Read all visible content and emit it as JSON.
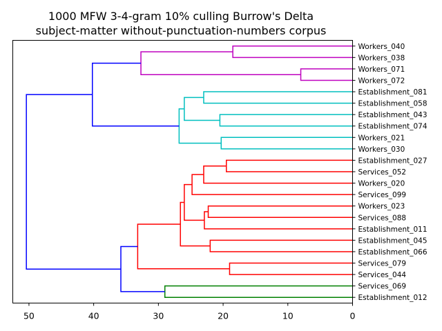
{
  "chart_data": {
    "type": "dendrogram",
    "title_lines": [
      "1000 MFW 3-4-gram 10% culling Burrow's Delta",
      "subject-matter without-punctuation-numbers corpus"
    ],
    "xlabel": "",
    "ylabel": "",
    "xlim": [
      52.5,
      0
    ],
    "xticks": [
      50,
      40,
      30,
      20,
      10,
      0
    ],
    "grid": false,
    "orientation": "left",
    "leaves": [
      "Workers_040",
      "Workers_038",
      "Workers_071",
      "Workers_072",
      "Establishment_081",
      "Establishment_058",
      "Establishment_043",
      "Establishment_074",
      "Workers_021",
      "Workers_030",
      "Establishment_027",
      "Services_052",
      "Workers_020",
      "Services_099",
      "Workers_023",
      "Services_088",
      "Establishment_011",
      "Establishment_045",
      "Establishment_066",
      "Services_079",
      "Services_044",
      "Services_069",
      "Establishment_012"
    ],
    "colors": {
      "magenta": "#bf00bf",
      "cyan": "#00bfbf",
      "red": "#ff0000",
      "green": "#008000",
      "blue": "#0000ff"
    },
    "merges": [
      {
        "id": "A",
        "left": "Workers_071",
        "right": "Workers_072",
        "height": 8,
        "color": "magenta"
      },
      {
        "id": "B",
        "left": "Workers_040",
        "right": "Workers_038",
        "height": 18.5,
        "color": "magenta"
      },
      {
        "id": "C",
        "left": "B",
        "right": "A",
        "height": 32.7,
        "color": "magenta"
      },
      {
        "id": "D",
        "left": "Establishment_081",
        "right": "Establishment_058",
        "height": 23,
        "color": "cyan"
      },
      {
        "id": "E",
        "left": "Establishment_043",
        "right": "Establishment_074",
        "height": 20.5,
        "color": "cyan"
      },
      {
        "id": "F",
        "left": "D",
        "right": "E",
        "height": 26,
        "color": "cyan"
      },
      {
        "id": "G",
        "left": "Workers_021",
        "right": "Workers_030",
        "height": 20.3,
        "color": "cyan"
      },
      {
        "id": "H",
        "left": "F",
        "right": "G",
        "height": 26.8,
        "color": "cyan"
      },
      {
        "id": "I",
        "left": "C",
        "right": "H",
        "height": 40.2,
        "color": "blue"
      },
      {
        "id": "J",
        "left": "Establishment_027",
        "right": "Services_052",
        "height": 19.5,
        "color": "red"
      },
      {
        "id": "K",
        "left": "J",
        "right": "Workers_020",
        "height": 23,
        "color": "red"
      },
      {
        "id": "L",
        "left": "K",
        "right": "Services_099",
        "height": 24.8,
        "color": "red"
      },
      {
        "id": "M",
        "left": "Workers_023",
        "right": "Services_088",
        "height": 22.3,
        "color": "red"
      },
      {
        "id": "N",
        "left": "M",
        "right": "Establishment_011",
        "height": 22.9,
        "color": "red"
      },
      {
        "id": "O",
        "left": "L",
        "right": "N",
        "height": 26,
        "color": "red"
      },
      {
        "id": "P",
        "left": "Establishment_045",
        "right": "Establishment_066",
        "height": 22,
        "color": "red"
      },
      {
        "id": "Q",
        "left": "O",
        "right": "P",
        "height": 26.6,
        "color": "red"
      },
      {
        "id": "R",
        "left": "Services_079",
        "right": "Services_044",
        "height": 19,
        "color": "red"
      },
      {
        "id": "S",
        "left": "Q",
        "right": "R",
        "height": 33.2,
        "color": "red"
      },
      {
        "id": "T",
        "left": "Services_069",
        "right": "Establishment_012",
        "height": 29,
        "color": "green"
      },
      {
        "id": "U",
        "left": "S",
        "right": "T",
        "height": 35.8,
        "color": "blue"
      },
      {
        "id": "V",
        "left": "I",
        "right": "U",
        "height": 50.4,
        "color": "blue"
      }
    ]
  }
}
